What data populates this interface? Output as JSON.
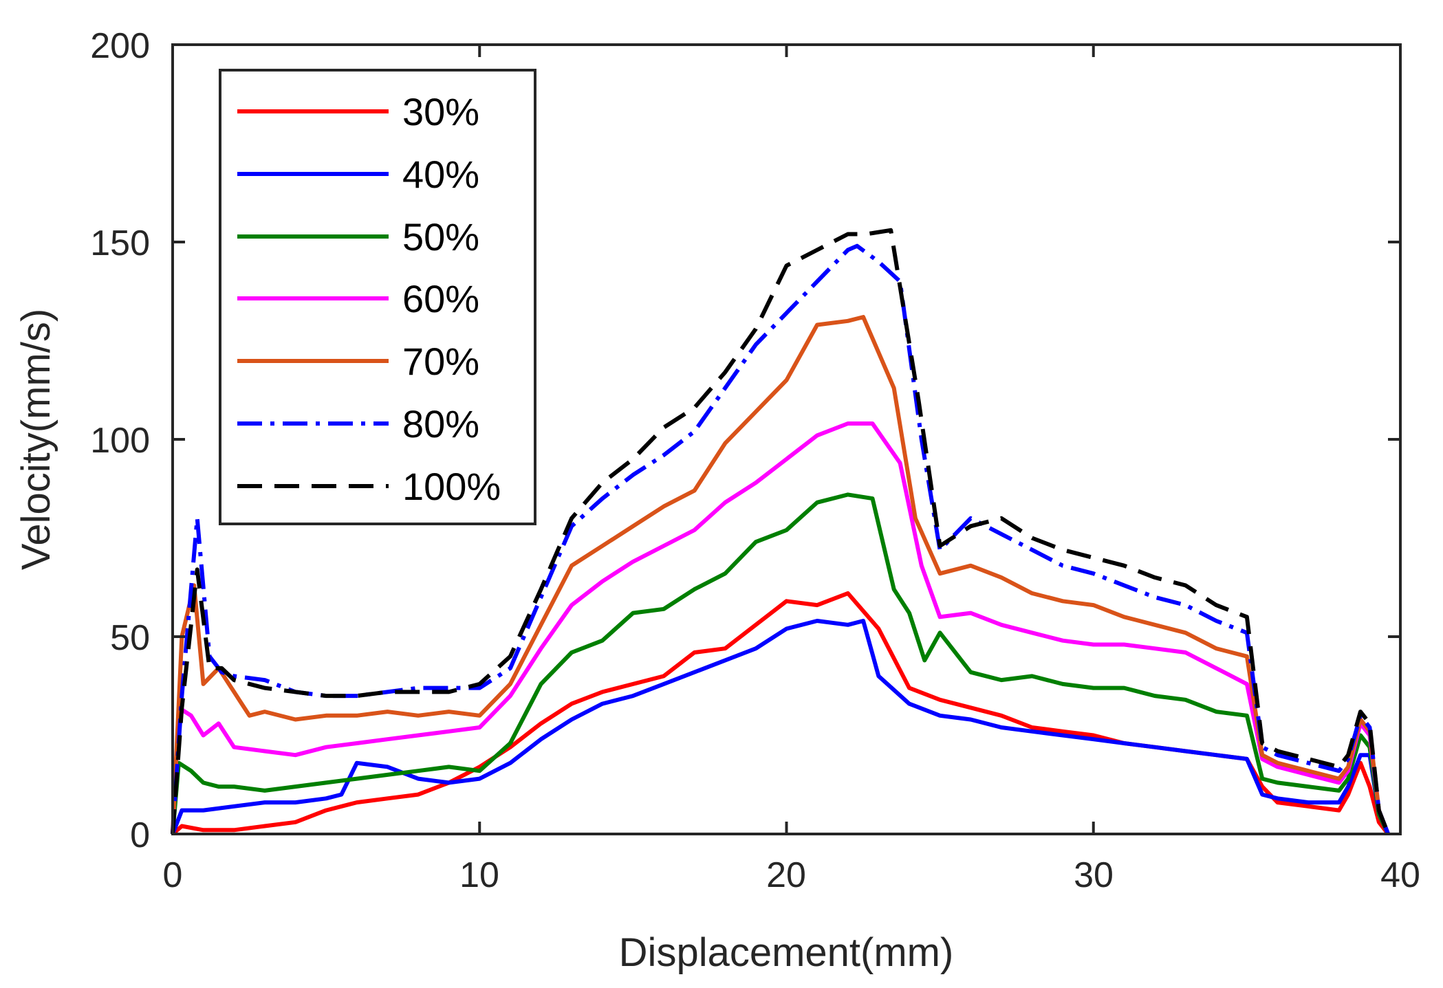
{
  "chart_data": {
    "type": "line",
    "xlabel": "Displacement(mm)",
    "ylabel": "Velocity(mm/s)",
    "xlim": [
      0,
      40
    ],
    "ylim": [
      0,
      200
    ],
    "xticks": [
      "0",
      "10",
      "20",
      "30",
      "40"
    ],
    "yticks": [
      "0",
      "50",
      "100",
      "150",
      "200"
    ],
    "xtick_values": [
      0,
      10,
      20,
      30,
      40
    ],
    "ytick_values": [
      0,
      50,
      100,
      150,
      200
    ],
    "grid": false,
    "legend_position": "top-left",
    "series": [
      {
        "name": "30%",
        "color": "#ff0000",
        "dash": "solid",
        "x": [
          0,
          0.3,
          1,
          2,
          3,
          4,
          5,
          6,
          7,
          8,
          9,
          10,
          11,
          12,
          13,
          14,
          15,
          16,
          17,
          18,
          19,
          20,
          21,
          22,
          23,
          24,
          25,
          26,
          27,
          28,
          29,
          30,
          31,
          32,
          33,
          34,
          35,
          35.5,
          36,
          37,
          38,
          38.3,
          38.7,
          39,
          39.3,
          39.6
        ],
        "y": [
          0,
          2,
          1,
          1,
          2,
          3,
          6,
          8,
          9,
          10,
          13,
          17,
          22,
          28,
          33,
          36,
          38,
          40,
          46,
          47,
          53,
          59,
          58,
          61,
          52,
          37,
          34,
          32,
          30,
          27,
          26,
          25,
          23,
          22,
          21,
          20,
          19,
          12,
          8,
          7,
          6,
          10,
          18,
          12,
          3,
          0
        ]
      },
      {
        "name": "40%",
        "color": "#0000ff",
        "dash": "solid",
        "x": [
          0,
          0.3,
          1,
          2,
          3,
          4,
          5,
          5.5,
          6,
          7,
          8,
          9,
          10,
          11,
          12,
          13,
          14,
          15,
          16,
          17,
          18,
          19,
          20,
          21,
          22,
          22.5,
          23,
          24,
          25,
          26,
          27,
          28,
          29,
          30,
          31,
          32,
          33,
          34,
          35,
          35.5,
          36,
          37,
          38,
          38.3,
          38.7,
          39,
          39.3,
          39.6
        ],
        "y": [
          0,
          6,
          6,
          7,
          8,
          8,
          9,
          10,
          18,
          17,
          14,
          13,
          14,
          18,
          24,
          29,
          33,
          35,
          38,
          41,
          44,
          47,
          52,
          54,
          53,
          54,
          40,
          33,
          30,
          29,
          27,
          26,
          25,
          24,
          23,
          22,
          21,
          20,
          19,
          10,
          9,
          8,
          8,
          12,
          20,
          20,
          5,
          0
        ]
      },
      {
        "name": "50%",
        "color": "#007f00",
        "dash": "solid",
        "x": [
          0,
          0.2,
          0.6,
          1,
          1.5,
          2,
          3,
          4,
          5,
          6,
          7,
          8,
          9,
          10,
          11,
          12,
          13,
          14,
          15,
          16,
          17,
          18,
          19,
          20,
          21,
          22,
          22.8,
          23.5,
          24,
          24.5,
          25,
          26,
          27,
          28,
          29,
          30,
          31,
          32,
          33,
          34,
          35,
          35.5,
          36,
          37,
          38,
          38.3,
          38.7,
          39,
          39.3,
          39.6
        ],
        "y": [
          0,
          18,
          16,
          13,
          12,
          12,
          11,
          12,
          13,
          14,
          15,
          16,
          17,
          16,
          23,
          38,
          46,
          49,
          56,
          57,
          62,
          66,
          74,
          77,
          84,
          86,
          85,
          62,
          56,
          44,
          51,
          41,
          39,
          40,
          38,
          37,
          37,
          35,
          34,
          31,
          30,
          14,
          13,
          12,
          11,
          14,
          25,
          22,
          5,
          0
        ]
      },
      {
        "name": "60%",
        "color": "#ff00ff",
        "dash": "solid",
        "x": [
          0,
          0.2,
          0.6,
          1,
          1.5,
          2,
          3,
          4,
          5,
          6,
          7,
          8,
          9,
          10,
          11,
          12,
          13,
          14,
          15,
          16,
          17,
          18,
          19,
          20,
          21,
          22,
          22.8,
          23.7,
          24.4,
          25,
          26,
          27,
          28,
          29,
          30,
          31,
          32,
          33,
          34,
          35,
          35.5,
          36,
          37,
          38,
          38.3,
          38.7,
          39,
          39.3,
          39.6
        ],
        "y": [
          0,
          32,
          30,
          25,
          28,
          22,
          21,
          20,
          22,
          23,
          24,
          25,
          26,
          27,
          35,
          47,
          58,
          64,
          69,
          73,
          77,
          84,
          89,
          95,
          101,
          104,
          104,
          94,
          68,
          55,
          56,
          53,
          51,
          49,
          48,
          48,
          47,
          46,
          42,
          38,
          19,
          17,
          15,
          13,
          16,
          28,
          25,
          6,
          0
        ]
      },
      {
        "name": "70%",
        "color": "#d95319",
        "dash": "solid",
        "x": [
          0,
          0.3,
          0.7,
          1,
          1.5,
          2,
          2.5,
          3,
          4,
          5,
          6,
          7,
          8,
          9,
          10,
          11,
          12,
          13,
          14,
          15,
          16,
          17,
          18,
          19,
          20,
          21,
          22,
          22.5,
          23.5,
          24.2,
          25,
          26,
          27,
          28,
          29,
          30,
          31,
          32,
          33,
          34,
          35,
          35.5,
          36,
          37,
          38,
          38.3,
          38.7,
          39,
          39.3,
          39.6
        ],
        "y": [
          0,
          50,
          63,
          38,
          42,
          36,
          30,
          31,
          29,
          30,
          30,
          31,
          30,
          31,
          30,
          38,
          53,
          68,
          73,
          78,
          83,
          87,
          99,
          107,
          115,
          129,
          130,
          131,
          113,
          80,
          66,
          68,
          65,
          61,
          59,
          58,
          55,
          53,
          51,
          47,
          45,
          20,
          18,
          16,
          14,
          17,
          29,
          26,
          6,
          0
        ]
      },
      {
        "name": "80%",
        "color": "#0000ff",
        "dash": "dashdot",
        "x": [
          0,
          0.3,
          0.8,
          1.2,
          1.6,
          2,
          3,
          4,
          5,
          6,
          7,
          8,
          9,
          10,
          11,
          12,
          13,
          14,
          15,
          16,
          17,
          18,
          19,
          20,
          21,
          22,
          22.3,
          23,
          23.7,
          24.4,
          25,
          26,
          27,
          28,
          29,
          30,
          31,
          32,
          33,
          34,
          35,
          35.5,
          36,
          37,
          38,
          38.3,
          38.7,
          39,
          39.3,
          39.6
        ],
        "y": [
          0,
          35,
          80,
          45,
          41,
          40,
          39,
          36,
          35,
          35,
          36,
          37,
          37,
          37,
          42,
          60,
          78,
          85,
          91,
          96,
          102,
          113,
          124,
          132,
          140,
          148,
          149,
          145,
          140,
          100,
          72,
          80,
          76,
          72,
          68,
          66,
          63,
          60,
          58,
          54,
          51,
          22,
          20,
          18,
          16,
          19,
          30,
          27,
          6,
          0
        ]
      },
      {
        "name": "100%",
        "color": "#000000",
        "dash": "dash",
        "x": [
          0,
          0.3,
          0.8,
          1.2,
          1.6,
          2,
          3,
          4,
          5,
          6,
          7,
          8,
          9,
          10,
          11,
          12,
          13,
          14,
          15,
          16,
          17,
          18,
          19,
          20,
          21,
          22,
          22.6,
          23.4,
          24.3,
          25,
          26,
          27,
          28,
          29,
          30,
          31,
          32,
          33,
          34,
          35,
          35.5,
          36,
          37,
          38,
          38.3,
          38.7,
          39,
          39.3,
          39.6
        ],
        "y": [
          0,
          32,
          67,
          42,
          42,
          39,
          37,
          36,
          35,
          35,
          36,
          36,
          36,
          38,
          45,
          62,
          80,
          89,
          95,
          103,
          108,
          117,
          128,
          144,
          148,
          152,
          152,
          153,
          110,
          73,
          78,
          80,
          75,
          72,
          70,
          68,
          65,
          63,
          58,
          55,
          23,
          21,
          19,
          17,
          20,
          31,
          28,
          6,
          0
        ]
      }
    ]
  }
}
